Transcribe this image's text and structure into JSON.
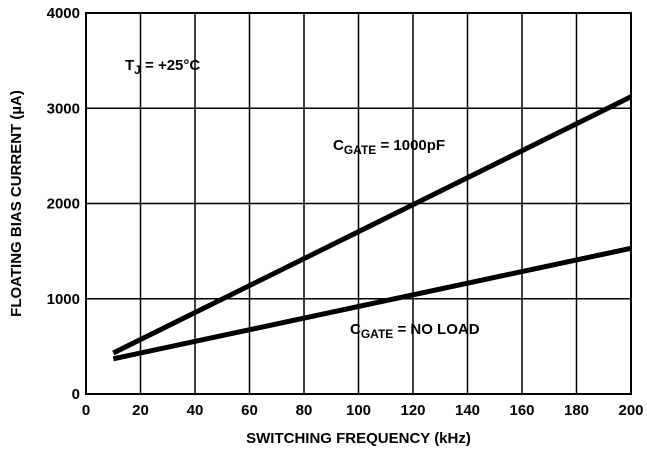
{
  "chart_data": {
    "type": "line",
    "xlabel": "SWITCHING FREQUENCY (kHz)",
    "ylabel": "FLOATING BIAS CURRENT (µA)",
    "xlim": [
      0,
      200
    ],
    "ylim": [
      0,
      4000
    ],
    "xticks": [
      "0",
      "20",
      "40",
      "60",
      "80",
      "100",
      "120",
      "140",
      "160",
      "180",
      "200"
    ],
    "yticks": [
      "0",
      "1000",
      "2000",
      "3000",
      "4000"
    ],
    "grid": true,
    "series": [
      {
        "name": "C_GATE = 1000pF",
        "x": [
          10,
          200
        ],
        "y": [
          430,
          3120
        ]
      },
      {
        "name": "C_GATE = NO LOAD",
        "x": [
          10,
          200
        ],
        "y": [
          370,
          1530
        ]
      }
    ],
    "annotations": {
      "tj": {
        "main": "T",
        "sub": "J",
        "rest": " = +25°C"
      },
      "load1000": {
        "main": "C",
        "sub": "GATE",
        "rest": " = 1000pF"
      },
      "noload": {
        "main": "C",
        "sub": "GATE",
        "rest": " = NO LOAD"
      }
    }
  }
}
